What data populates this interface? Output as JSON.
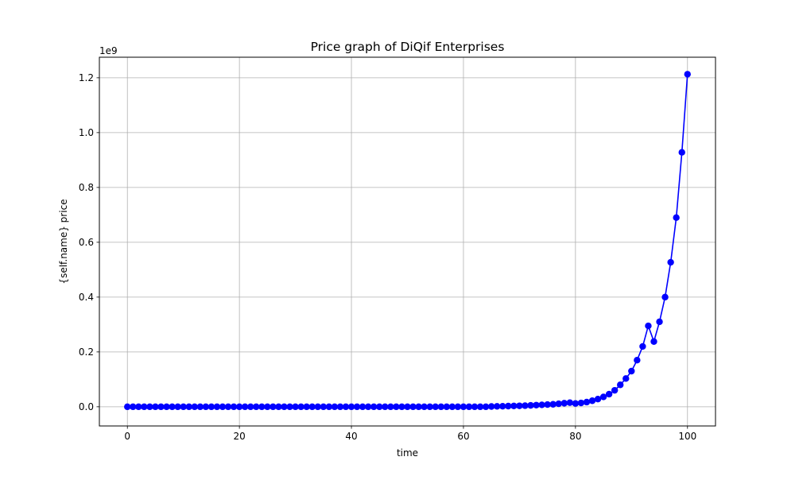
{
  "chart_data": {
    "type": "line",
    "title": "Price graph of DiQif Enterprises",
    "xlabel": "time",
    "ylabel": "{self.name} price",
    "y_offset_label": "1e9",
    "y_multiplier": 1000000000,
    "xlim": [
      -5,
      105
    ],
    "ylim": [
      -0.07,
      1.275
    ],
    "x_ticks": [
      0,
      20,
      40,
      60,
      80,
      100
    ],
    "x_tick_labels": [
      "0",
      "20",
      "40",
      "60",
      "80",
      "100"
    ],
    "y_ticks": [
      0.0,
      0.2,
      0.4,
      0.6,
      0.8,
      1.0,
      1.2
    ],
    "y_tick_labels": [
      "0.0",
      "0.2",
      "0.4",
      "0.6",
      "0.8",
      "1.0",
      "1.2"
    ],
    "grid": true,
    "series": [
      {
        "color": "#0000ff",
        "marker": "circle",
        "x": [
          0,
          1,
          2,
          3,
          4,
          5,
          6,
          7,
          8,
          9,
          10,
          11,
          12,
          13,
          14,
          15,
          16,
          17,
          18,
          19,
          20,
          21,
          22,
          23,
          24,
          25,
          26,
          27,
          28,
          29,
          30,
          31,
          32,
          33,
          34,
          35,
          36,
          37,
          38,
          39,
          40,
          41,
          42,
          43,
          44,
          45,
          46,
          47,
          48,
          49,
          50,
          51,
          52,
          53,
          54,
          55,
          56,
          57,
          58,
          59,
          60,
          61,
          62,
          63,
          64,
          65,
          66,
          67,
          68,
          69,
          70,
          71,
          72,
          73,
          74,
          75,
          76,
          77,
          78,
          79,
          80,
          81,
          82,
          83,
          84,
          85,
          86,
          87,
          88,
          89,
          90,
          91,
          92,
          93,
          94,
          95,
          96,
          97,
          98,
          99,
          100
        ],
        "values": [
          0,
          0,
          0,
          0,
          0,
          0,
          0,
          0,
          0,
          0,
          0,
          0,
          0,
          0,
          0,
          0,
          0,
          0,
          0,
          0,
          0,
          0,
          0,
          0,
          0,
          0,
          0,
          0,
          0,
          0,
          0,
          0,
          0,
          0,
          0,
          0,
          0,
          0,
          0,
          0,
          0,
          0,
          0,
          0,
          0,
          0,
          0,
          0,
          0,
          0,
          0,
          0,
          0,
          0,
          0,
          0,
          0,
          0,
          0,
          0,
          0,
          0,
          0,
          0,
          0,
          0.001,
          0.0015,
          0.002,
          0.0025,
          0.003,
          0.0035,
          0.004,
          0.005,
          0.006,
          0.007,
          0.008,
          0.009,
          0.011,
          0.013,
          0.015,
          0.012,
          0.014,
          0.017,
          0.022,
          0.028,
          0.036,
          0.046,
          0.06,
          0.08,
          0.103,
          0.13,
          0.17,
          0.22,
          0.295,
          0.238,
          0.31,
          0.4,
          0.527,
          0.69,
          0.928,
          1.213
        ]
      }
    ]
  }
}
